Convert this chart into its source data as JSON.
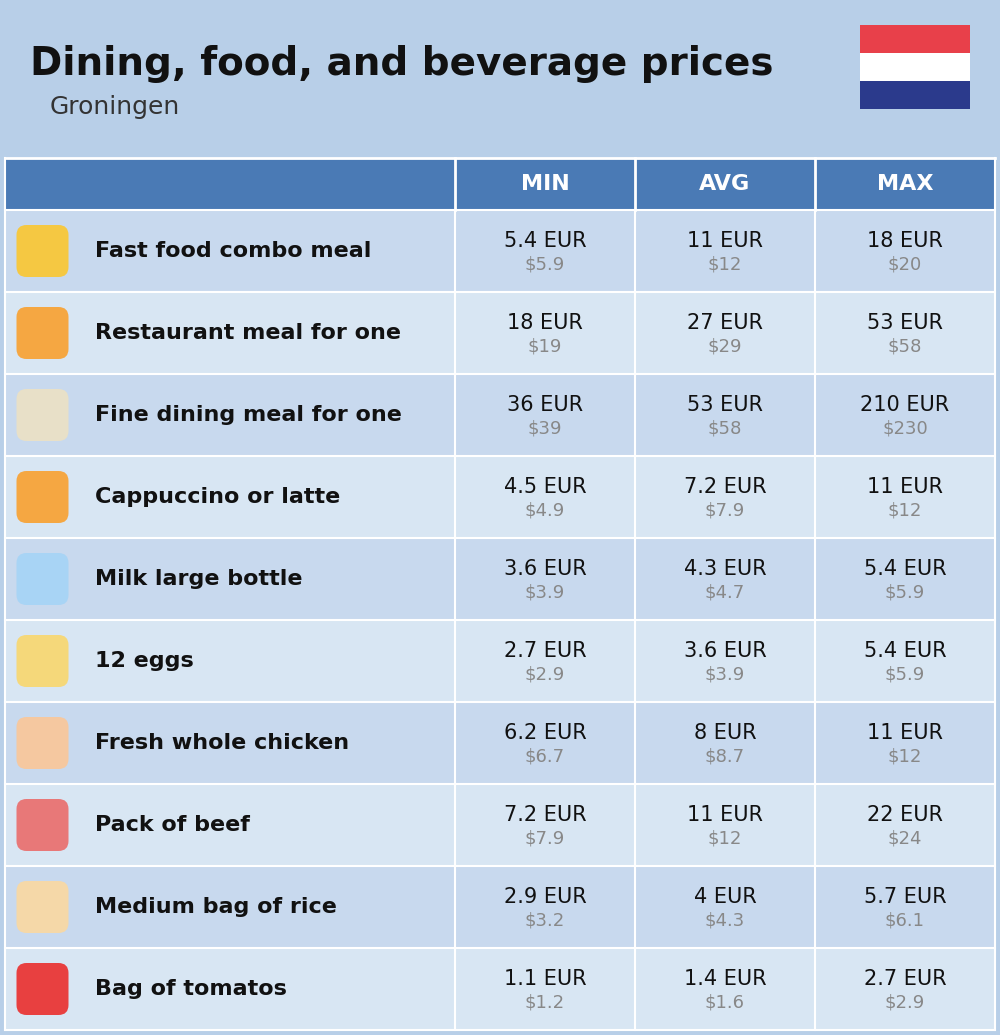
{
  "title": "Dining, food, and beverage prices",
  "subtitle": "Groningen",
  "bg_color": "#b8cfe8",
  "header_color": "#4a7ab5",
  "header_text_color": "#ffffff",
  "row_colors": [
    "#c8d9ee",
    "#d8e6f3"
  ],
  "col_headers": [
    "MIN",
    "AVG",
    "MAX"
  ],
  "items": [
    {
      "label": "Fast food combo meal",
      "icon_color": "#f5c842",
      "min_eur": "5.4 EUR",
      "min_usd": "$5.9",
      "avg_eur": "11 EUR",
      "avg_usd": "$12",
      "max_eur": "18 EUR",
      "max_usd": "$20"
    },
    {
      "label": "Restaurant meal for one",
      "icon_color": "#f5a742",
      "min_eur": "18 EUR",
      "min_usd": "$19",
      "avg_eur": "27 EUR",
      "avg_usd": "$29",
      "max_eur": "53 EUR",
      "max_usd": "$58"
    },
    {
      "label": "Fine dining meal for one",
      "icon_color": "#e8e0c8",
      "min_eur": "36 EUR",
      "min_usd": "$39",
      "avg_eur": "53 EUR",
      "avg_usd": "$58",
      "max_eur": "210 EUR",
      "max_usd": "$230"
    },
    {
      "label": "Cappuccino or latte",
      "icon_color": "#f5a742",
      "min_eur": "4.5 EUR",
      "min_usd": "$4.9",
      "avg_eur": "7.2 EUR",
      "avg_usd": "$7.9",
      "max_eur": "11 EUR",
      "max_usd": "$12"
    },
    {
      "label": "Milk large bottle",
      "icon_color": "#a8d4f5",
      "min_eur": "3.6 EUR",
      "min_usd": "$3.9",
      "avg_eur": "4.3 EUR",
      "avg_usd": "$4.7",
      "max_eur": "5.4 EUR",
      "max_usd": "$5.9"
    },
    {
      "label": "12 eggs",
      "icon_color": "#f5d87a",
      "min_eur": "2.7 EUR",
      "min_usd": "$2.9",
      "avg_eur": "3.6 EUR",
      "avg_usd": "$3.9",
      "max_eur": "5.4 EUR",
      "max_usd": "$5.9"
    },
    {
      "label": "Fresh whole chicken",
      "icon_color": "#f5c8a0",
      "min_eur": "6.2 EUR",
      "min_usd": "$6.7",
      "avg_eur": "8 EUR",
      "avg_usd": "$8.7",
      "max_eur": "11 EUR",
      "max_usd": "$12"
    },
    {
      "label": "Pack of beef",
      "icon_color": "#e87878",
      "min_eur": "7.2 EUR",
      "min_usd": "$7.9",
      "avg_eur": "11 EUR",
      "avg_usd": "$12",
      "max_eur": "22 EUR",
      "max_usd": "$24"
    },
    {
      "label": "Medium bag of rice",
      "icon_color": "#f5d8a8",
      "min_eur": "2.9 EUR",
      "min_usd": "$3.2",
      "avg_eur": "4 EUR",
      "avg_usd": "$4.3",
      "max_eur": "5.7 EUR",
      "max_usd": "$6.1"
    },
    {
      "label": "Bag of tomatos",
      "icon_color": "#e84040",
      "min_eur": "1.1 EUR",
      "min_usd": "$1.2",
      "avg_eur": "1.4 EUR",
      "avg_usd": "$1.6",
      "max_eur": "2.7 EUR",
      "max_usd": "$2.9"
    }
  ],
  "flag_red": "#E8404A",
  "flag_white": "#ffffff",
  "flag_blue": "#2B3A8C"
}
